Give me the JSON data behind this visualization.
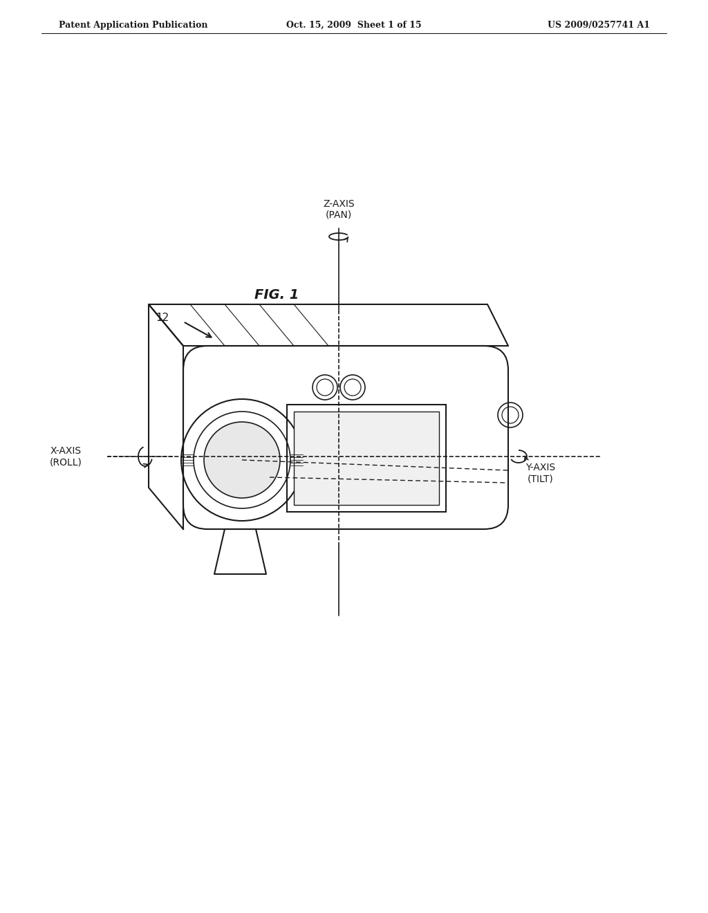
{
  "bg_color": "#ffffff",
  "line_color": "#1a1a1a",
  "header_left": "Patent Application Publication",
  "header_mid": "Oct. 15, 2009  Sheet 1 of 15",
  "header_right": "US 2009/0257741 A1",
  "fig_label": "FIG. 1",
  "label_12": "12",
  "label_z": "Z-AXIS\n(PAN)",
  "label_x": "X-AXIS\n(ROLL)",
  "label_y": "Y-AXIS\n(TILT)"
}
